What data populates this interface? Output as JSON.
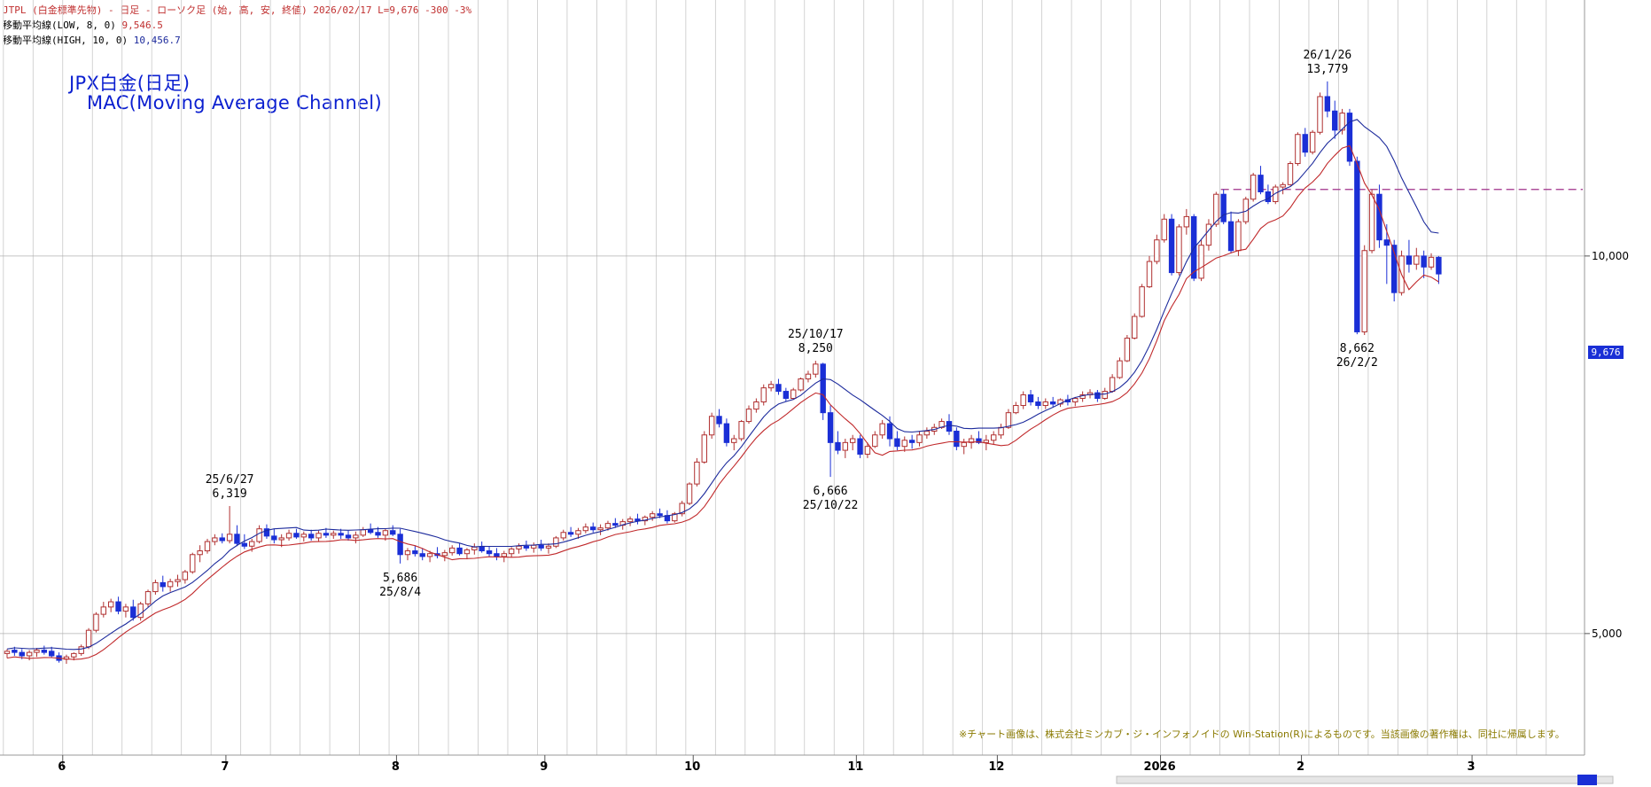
{
  "header": {
    "line1": "JTPL (白金標準先物) - 日足 - ローソク足 (始, 高, 安, 終値) 2026/02/17 L=9,676 -300 -3%",
    "ma_low_label": "移動平均線(LOW, 8, 0)",
    "ma_low_value": "9,546.5",
    "ma_high_label": "移動平均線(HIGH, 10, 0)",
    "ma_high_value": "10,456.7"
  },
  "title": {
    "line1": "JPX白金(日足)",
    "line2": "MAC(Moving Average Channel)"
  },
  "copyright": "※チャート画像は、株式会社ミンカブ・ジ・インフォノイドの Win-Station(R)によるものです。当該画像の著作権は、同社に帰属します。",
  "current_price_label": "9,676",
  "colors": {
    "up": "#b03030",
    "down": "#1a2fd6",
    "ma_high": "#1c2a9c",
    "ma_low": "#c0282a",
    "grid": "#c8c8c8",
    "resistance": "#a0308a"
  },
  "chart_data": {
    "type": "candlestick",
    "y_scale": "log",
    "ylim": [
      4000,
      16000
    ],
    "y_ticks": [
      {
        "value": 5000,
        "label": "5,000"
      },
      {
        "value": 10000,
        "label": "10,000"
      }
    ],
    "x_labels": [
      "6",
      "7",
      "8",
      "9",
      "10",
      "11",
      "12",
      "2026",
      "2",
      "3"
    ],
    "resistance_level": 11300,
    "annotations": [
      {
        "date": "25/6/27",
        "value": "6,319",
        "price": 6319,
        "pos": "above"
      },
      {
        "date": "25/8/4",
        "value": "5,686",
        "price": 5686,
        "pos": "below"
      },
      {
        "date": "25/10/17",
        "value": "8,250",
        "price": 8250,
        "pos": "above"
      },
      {
        "date": "25/10/22",
        "value": "6,666",
        "price": 6666,
        "pos": "below"
      },
      {
        "date": "26/1/26",
        "value": "13,779",
        "price": 13779,
        "pos": "above"
      },
      {
        "date": "26/2/2",
        "value": "8,662",
        "price": 8662,
        "pos": "below"
      }
    ],
    "month_starts": [
      {
        "label": "6",
        "index": 8
      },
      {
        "label": "7",
        "index": 30
      },
      {
        "label": "8",
        "index": 53
      },
      {
        "label": "9",
        "index": 73
      },
      {
        "label": "10",
        "index": 93
      },
      {
        "label": "11",
        "index": 115
      },
      {
        "label": "12",
        "index": 134
      },
      {
        "label": "2026",
        "index": 156
      },
      {
        "label": "2",
        "index": 175
      },
      {
        "label": "3",
        "index": 198
      }
    ],
    "series": [
      {
        "name": "移動平均線(HIGH, 10, 0)",
        "source": "high",
        "period": 10
      },
      {
        "name": "移動平均線(LOW, 8, 0)",
        "source": "low",
        "period": 8
      }
    ],
    "ohlc": [
      [
        4820,
        4860,
        4780,
        4840
      ],
      [
        4850,
        4880,
        4800,
        4830
      ],
      [
        4830,
        4860,
        4770,
        4800
      ],
      [
        4800,
        4850,
        4760,
        4830
      ],
      [
        4830,
        4870,
        4790,
        4850
      ],
      [
        4850,
        4890,
        4810,
        4830
      ],
      [
        4840,
        4880,
        4780,
        4800
      ],
      [
        4800,
        4830,
        4740,
        4760
      ],
      [
        4770,
        4810,
        4730,
        4790
      ],
      [
        4790,
        4830,
        4760,
        4820
      ],
      [
        4820,
        4900,
        4800,
        4880
      ],
      [
        4880,
        5050,
        4860,
        5030
      ],
      [
        5030,
        5200,
        5010,
        5180
      ],
      [
        5180,
        5300,
        5150,
        5250
      ],
      [
        5250,
        5330,
        5200,
        5300
      ],
      [
        5300,
        5350,
        5180,
        5210
      ],
      [
        5210,
        5280,
        5150,
        5250
      ],
      [
        5250,
        5320,
        5120,
        5150
      ],
      [
        5150,
        5300,
        5120,
        5280
      ],
      [
        5280,
        5420,
        5250,
        5400
      ],
      [
        5400,
        5520,
        5370,
        5490
      ],
      [
        5490,
        5560,
        5400,
        5450
      ],
      [
        5450,
        5530,
        5400,
        5500
      ],
      [
        5500,
        5570,
        5450,
        5520
      ],
      [
        5520,
        5620,
        5480,
        5600
      ],
      [
        5600,
        5800,
        5580,
        5780
      ],
      [
        5780,
        5880,
        5700,
        5820
      ],
      [
        5820,
        5950,
        5790,
        5920
      ],
      [
        5920,
        6000,
        5880,
        5960
      ],
      [
        5960,
        6010,
        5900,
        5930
      ],
      [
        5930,
        6319,
        5900,
        6000
      ],
      [
        6000,
        6100,
        5870,
        5900
      ],
      [
        5900,
        6000,
        5840,
        5870
      ],
      [
        5870,
        5950,
        5810,
        5920
      ],
      [
        5920,
        6100,
        5900,
        6060
      ],
      [
        6060,
        6110,
        5950,
        5980
      ],
      [
        5980,
        6060,
        5900,
        5940
      ],
      [
        5940,
        6000,
        5860,
        5960
      ],
      [
        5960,
        6050,
        5930,
        6010
      ],
      [
        6010,
        6060,
        5950,
        5970
      ],
      [
        5970,
        6030,
        5920,
        6000
      ],
      [
        6000,
        6050,
        5930,
        5960
      ],
      [
        5960,
        6040,
        5920,
        6010
      ],
      [
        6010,
        6070,
        5960,
        5990
      ],
      [
        5990,
        6040,
        5950,
        6010
      ],
      [
        6010,
        6060,
        5950,
        5990
      ],
      [
        5990,
        6040,
        5930,
        5960
      ],
      [
        5960,
        6030,
        5900,
        5990
      ],
      [
        5990,
        6080,
        5970,
        6050
      ],
      [
        6050,
        6120,
        6000,
        6020
      ],
      [
        6020,
        6080,
        5960,
        5990
      ],
      [
        5990,
        6060,
        5930,
        6040
      ],
      [
        6040,
        6100,
        5980,
        6000
      ],
      [
        6000,
        6060,
        5686,
        5780
      ],
      [
        5780,
        5850,
        5720,
        5820
      ],
      [
        5820,
        5880,
        5760,
        5790
      ],
      [
        5790,
        5850,
        5720,
        5760
      ],
      [
        5760,
        5820,
        5700,
        5790
      ],
      [
        5790,
        5860,
        5740,
        5770
      ],
      [
        5770,
        5830,
        5710,
        5800
      ],
      [
        5800,
        5880,
        5770,
        5850
      ],
      [
        5850,
        5900,
        5770,
        5790
      ],
      [
        5790,
        5850,
        5730,
        5830
      ],
      [
        5830,
        5900,
        5780,
        5860
      ],
      [
        5860,
        5920,
        5800,
        5820
      ],
      [
        5820,
        5870,
        5760,
        5790
      ],
      [
        5790,
        5850,
        5720,
        5760
      ],
      [
        5760,
        5820,
        5700,
        5790
      ],
      [
        5790,
        5860,
        5750,
        5840
      ],
      [
        5840,
        5900,
        5790,
        5870
      ],
      [
        5870,
        5930,
        5820,
        5850
      ],
      [
        5850,
        5910,
        5800,
        5880
      ],
      [
        5880,
        5940,
        5820,
        5850
      ],
      [
        5850,
        5900,
        5790,
        5870
      ],
      [
        5870,
        5980,
        5850,
        5960
      ],
      [
        5960,
        6050,
        5930,
        6020
      ],
      [
        6020,
        6080,
        5970,
        6000
      ],
      [
        6000,
        6070,
        5950,
        6040
      ],
      [
        6040,
        6120,
        6010,
        6080
      ],
      [
        6080,
        6130,
        6020,
        6050
      ],
      [
        6050,
        6110,
        5990,
        6070
      ],
      [
        6070,
        6150,
        6040,
        6120
      ],
      [
        6120,
        6180,
        6070,
        6100
      ],
      [
        6100,
        6170,
        6050,
        6140
      ],
      [
        6140,
        6200,
        6090,
        6170
      ],
      [
        6170,
        6230,
        6110,
        6150
      ],
      [
        6150,
        6210,
        6100,
        6190
      ],
      [
        6190,
        6260,
        6150,
        6230
      ],
      [
        6230,
        6290,
        6180,
        6210
      ],
      [
        6210,
        6270,
        6120,
        6150
      ],
      [
        6150,
        6250,
        6130,
        6230
      ],
      [
        6230,
        6380,
        6200,
        6350
      ],
      [
        6350,
        6600,
        6330,
        6580
      ],
      [
        6580,
        6900,
        6550,
        6850
      ],
      [
        6850,
        7250,
        6830,
        7200
      ],
      [
        7200,
        7500,
        7150,
        7450
      ],
      [
        7450,
        7550,
        7300,
        7350
      ],
      [
        7350,
        7420,
        7050,
        7100
      ],
      [
        7100,
        7200,
        7000,
        7150
      ],
      [
        7150,
        7400,
        7120,
        7380
      ],
      [
        7380,
        7600,
        7350,
        7550
      ],
      [
        7550,
        7700,
        7500,
        7650
      ],
      [
        7650,
        7900,
        7600,
        7850
      ],
      [
        7850,
        7950,
        7800,
        7900
      ],
      [
        7900,
        7980,
        7750,
        7800
      ],
      [
        7800,
        7850,
        7650,
        7700
      ],
      [
        7700,
        7850,
        7680,
        7820
      ],
      [
        7820,
        8000,
        7800,
        7980
      ],
      [
        7980,
        8100,
        7930,
        8050
      ],
      [
        8050,
        8250,
        8000,
        8200
      ],
      [
        8200,
        8220,
        7400,
        7500
      ],
      [
        7500,
        7600,
        6666,
        7100
      ],
      [
        7100,
        7250,
        6950,
        7000
      ],
      [
        7000,
        7150,
        6900,
        7100
      ],
      [
        7100,
        7200,
        7000,
        7150
      ],
      [
        7150,
        7200,
        6900,
        6950
      ],
      [
        6950,
        7100,
        6900,
        7050
      ],
      [
        7050,
        7250,
        7030,
        7200
      ],
      [
        7200,
        7400,
        7150,
        7350
      ],
      [
        7350,
        7450,
        7050,
        7150
      ],
      [
        7150,
        7250,
        7000,
        7050
      ],
      [
        7050,
        7180,
        6980,
        7130
      ],
      [
        7130,
        7200,
        7020,
        7100
      ],
      [
        7100,
        7250,
        7050,
        7200
      ],
      [
        7200,
        7300,
        7150,
        7250
      ],
      [
        7250,
        7350,
        7200,
        7300
      ],
      [
        7300,
        7420,
        7280,
        7380
      ],
      [
        7380,
        7480,
        7200,
        7250
      ],
      [
        7250,
        7300,
        7000,
        7050
      ],
      [
        7050,
        7150,
        6950,
        7100
      ],
      [
        7100,
        7200,
        7020,
        7150
      ],
      [
        7150,
        7250,
        7080,
        7100
      ],
      [
        7100,
        7200,
        7000,
        7130
      ],
      [
        7130,
        7250,
        7080,
        7200
      ],
      [
        7200,
        7350,
        7150,
        7300
      ],
      [
        7300,
        7550,
        7280,
        7500
      ],
      [
        7500,
        7650,
        7480,
        7600
      ],
      [
        7600,
        7800,
        7550,
        7750
      ],
      [
        7750,
        7820,
        7600,
        7650
      ],
      [
        7650,
        7720,
        7550,
        7600
      ],
      [
        7600,
        7700,
        7550,
        7650
      ],
      [
        7650,
        7720,
        7580,
        7620
      ],
      [
        7620,
        7700,
        7580,
        7680
      ],
      [
        7680,
        7750,
        7600,
        7650
      ],
      [
        7650,
        7720,
        7590,
        7700
      ],
      [
        7700,
        7800,
        7650,
        7750
      ],
      [
        7750,
        7830,
        7700,
        7780
      ],
      [
        7780,
        7820,
        7650,
        7700
      ],
      [
        7700,
        7850,
        7680,
        7800
      ],
      [
        7800,
        8050,
        7780,
        8000
      ],
      [
        8000,
        8300,
        7980,
        8250
      ],
      [
        8250,
        8650,
        8230,
        8600
      ],
      [
        8600,
        9000,
        8580,
        8950
      ],
      [
        8950,
        9500,
        8930,
        9450
      ],
      [
        9450,
        10000,
        9430,
        9900
      ],
      [
        9900,
        10400,
        9850,
        10300
      ],
      [
        10300,
        10800,
        10250,
        10700
      ],
      [
        10700,
        10800,
        9650,
        9700
      ],
      [
        9700,
        10600,
        9650,
        10550
      ],
      [
        10550,
        10900,
        10400,
        10750
      ],
      [
        10750,
        10800,
        9550,
        9600
      ],
      [
        9600,
        10300,
        9550,
        10200
      ],
      [
        10200,
        10700,
        10100,
        10600
      ],
      [
        10600,
        11250,
        10550,
        11200
      ],
      [
        11200,
        11300,
        10600,
        10650
      ],
      [
        10650,
        10850,
        10050,
        10100
      ],
      [
        10100,
        10700,
        10000,
        10650
      ],
      [
        10650,
        11150,
        10600,
        11100
      ],
      [
        11100,
        11650,
        11050,
        11600
      ],
      [
        11600,
        11800,
        11200,
        11250
      ],
      [
        11250,
        11400,
        11000,
        11050
      ],
      [
        11050,
        11400,
        11000,
        11350
      ],
      [
        11350,
        11450,
        11200,
        11400
      ],
      [
        11400,
        11900,
        11380,
        11850
      ],
      [
        11850,
        12550,
        11800,
        12500
      ],
      [
        12500,
        12650,
        12000,
        12100
      ],
      [
        12100,
        12600,
        12050,
        12550
      ],
      [
        12550,
        13500,
        12500,
        13400
      ],
      [
        13400,
        13779,
        12900,
        13050
      ],
      [
        13050,
        13300,
        12400,
        12600
      ],
      [
        12600,
        13100,
        12500,
        13000
      ],
      [
        13000,
        13100,
        11800,
        11900
      ],
      [
        11900,
        12000,
        8662,
        8700
      ],
      [
        8700,
        10200,
        8650,
        10100
      ],
      [
        10100,
        11300,
        10050,
        11200
      ],
      [
        11200,
        11400,
        10150,
        10300
      ],
      [
        10300,
        10600,
        9500,
        10200
      ],
      [
        10200,
        10300,
        9200,
        9350
      ],
      [
        9350,
        10100,
        9300,
        10000
      ],
      [
        10000,
        10300,
        9700,
        9850
      ],
      [
        9850,
        10150,
        9750,
        10000
      ],
      [
        10000,
        10100,
        9600,
        9800
      ],
      [
        9800,
        10050,
        9750,
        9976
      ],
      [
        9976,
        10000,
        9500,
        9676
      ]
    ]
  }
}
